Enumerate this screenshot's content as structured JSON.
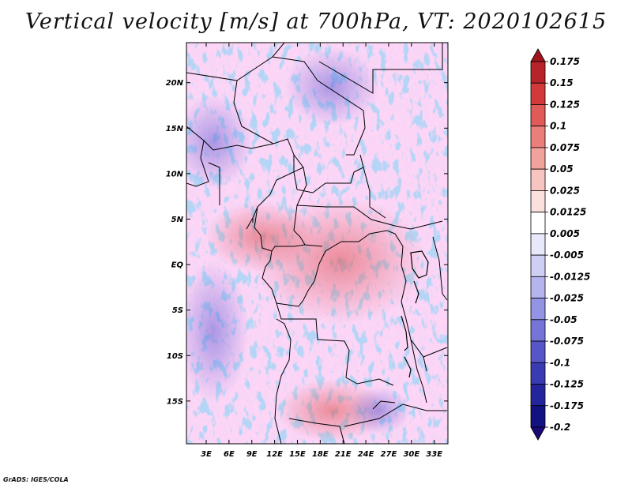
{
  "title": "Vertical velocity [m/s] at 700hPa, VT: 2020102615",
  "credit": "GrADS: IGES/COLA",
  "map": {
    "lat_labels": [
      "20N",
      "15N",
      "10N",
      "5N",
      "EQ",
      "5S",
      "10S",
      "15S"
    ],
    "lon_labels": [
      "3E",
      "6E",
      "9E",
      "12E",
      "15E",
      "18E",
      "21E",
      "24E",
      "27E",
      "30E",
      "33E"
    ],
    "lat_values": [
      20,
      15,
      10,
      5,
      0,
      -5,
      -10,
      -15
    ],
    "lon_values": [
      3,
      6,
      9,
      12,
      15,
      18,
      21,
      24,
      27,
      30,
      33
    ],
    "extent": {
      "lon_min": 0.4,
      "lon_max": 34.8,
      "lat_min": -19.7,
      "lat_max": 24.4
    },
    "field": "700hPa vertical velocity (m/s), red = positive, blue = negative"
  },
  "colorbar": {
    "labels": [
      "0.175",
      "0.15",
      "0.125",
      "0.1",
      "0.075",
      "0.05",
      "0.025",
      "0.0125",
      "0.005",
      "-0.005",
      "-0.0125",
      "-0.025",
      "-0.05",
      "-0.075",
      "-0.1",
      "-0.125",
      "-0.175",
      "-0.2"
    ],
    "colors": [
      "#a0141e",
      "#b82229",
      "#d23a3a",
      "#e05a58",
      "#ea7f79",
      "#f2a29c",
      "#f8c4c0",
      "#fbe0dd",
      "#ffffff",
      "#e8e8fb",
      "#cfcff5",
      "#b4b4ee",
      "#9494e4",
      "#7575d8",
      "#5656c8",
      "#3a3ab2",
      "#24249c",
      "#121282",
      "#1a0a78"
    ]
  }
}
